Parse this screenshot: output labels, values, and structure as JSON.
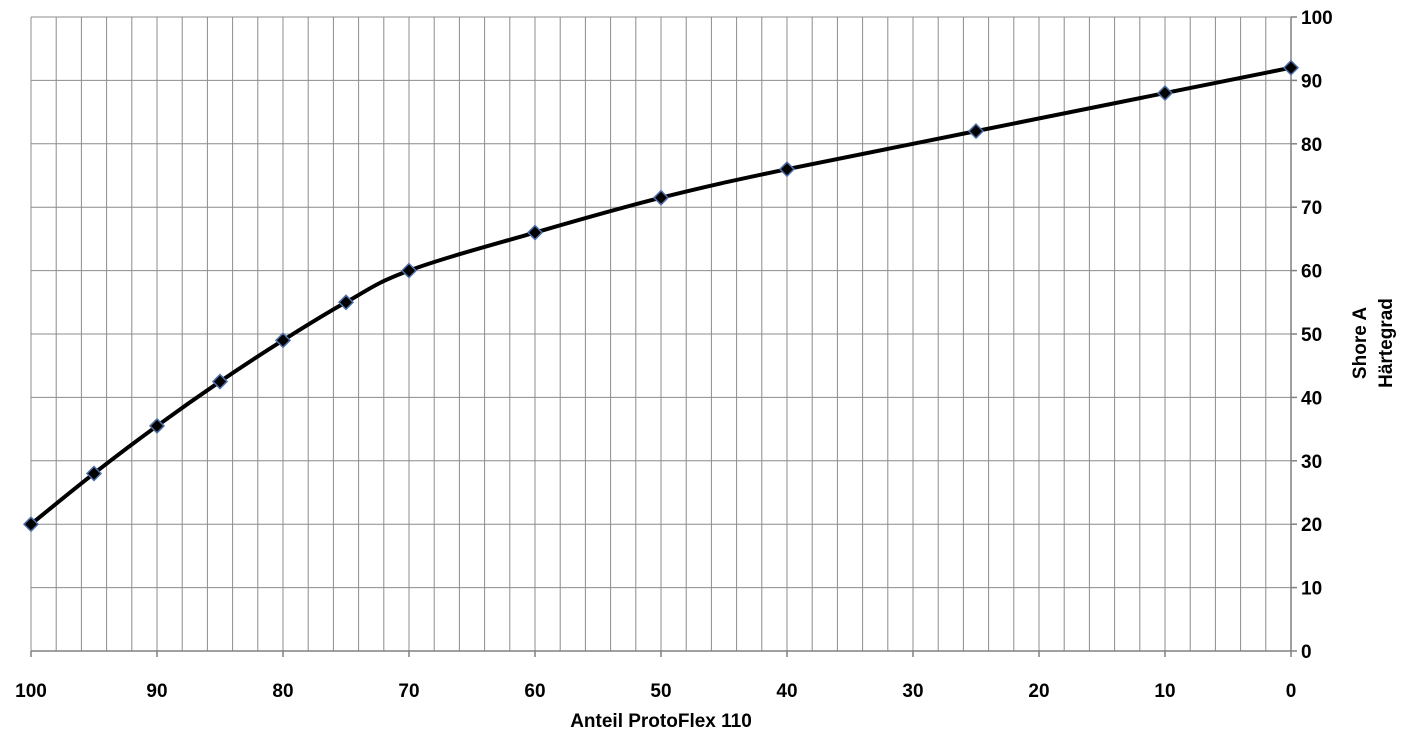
{
  "chart_data": {
    "type": "line",
    "title": "",
    "xlabel": "Anteil ProtoFlex 110",
    "ylabel_lines": [
      "Härtegrad",
      "Shore A"
    ],
    "x_reversed": true,
    "xlim": [
      100,
      0
    ],
    "ylim": [
      0,
      100
    ],
    "y_axis_position": "right",
    "x_ticks": [
      100,
      90,
      80,
      70,
      60,
      50,
      40,
      30,
      20,
      10,
      0
    ],
    "y_ticks": [
      0,
      10,
      20,
      30,
      40,
      50,
      60,
      70,
      80,
      90,
      100
    ],
    "x_tick_labels": [
      "100",
      "90",
      "80",
      "70",
      "60",
      "50",
      "40",
      "30",
      "20",
      "10",
      "0"
    ],
    "y_tick_labels": [
      "0",
      "10",
      "20",
      "30",
      "40",
      "50",
      "60",
      "70",
      "80",
      "90",
      "100"
    ],
    "grid": {
      "major": true,
      "minor_x_step": 2,
      "minor_y_step": 10
    },
    "legend": "none",
    "series": [
      {
        "x": [
          100,
          95,
          90,
          85,
          80,
          75,
          70,
          60,
          50,
          40,
          25,
          10,
          0
        ],
        "y": [
          20,
          28,
          35.5,
          42.5,
          49,
          55,
          60,
          66,
          71.5,
          76,
          82,
          88,
          92
        ],
        "line_color": "#000000",
        "marker": "diamond",
        "marker_fill": "#000000",
        "marker_edge": "#4f6fa8"
      }
    ]
  }
}
